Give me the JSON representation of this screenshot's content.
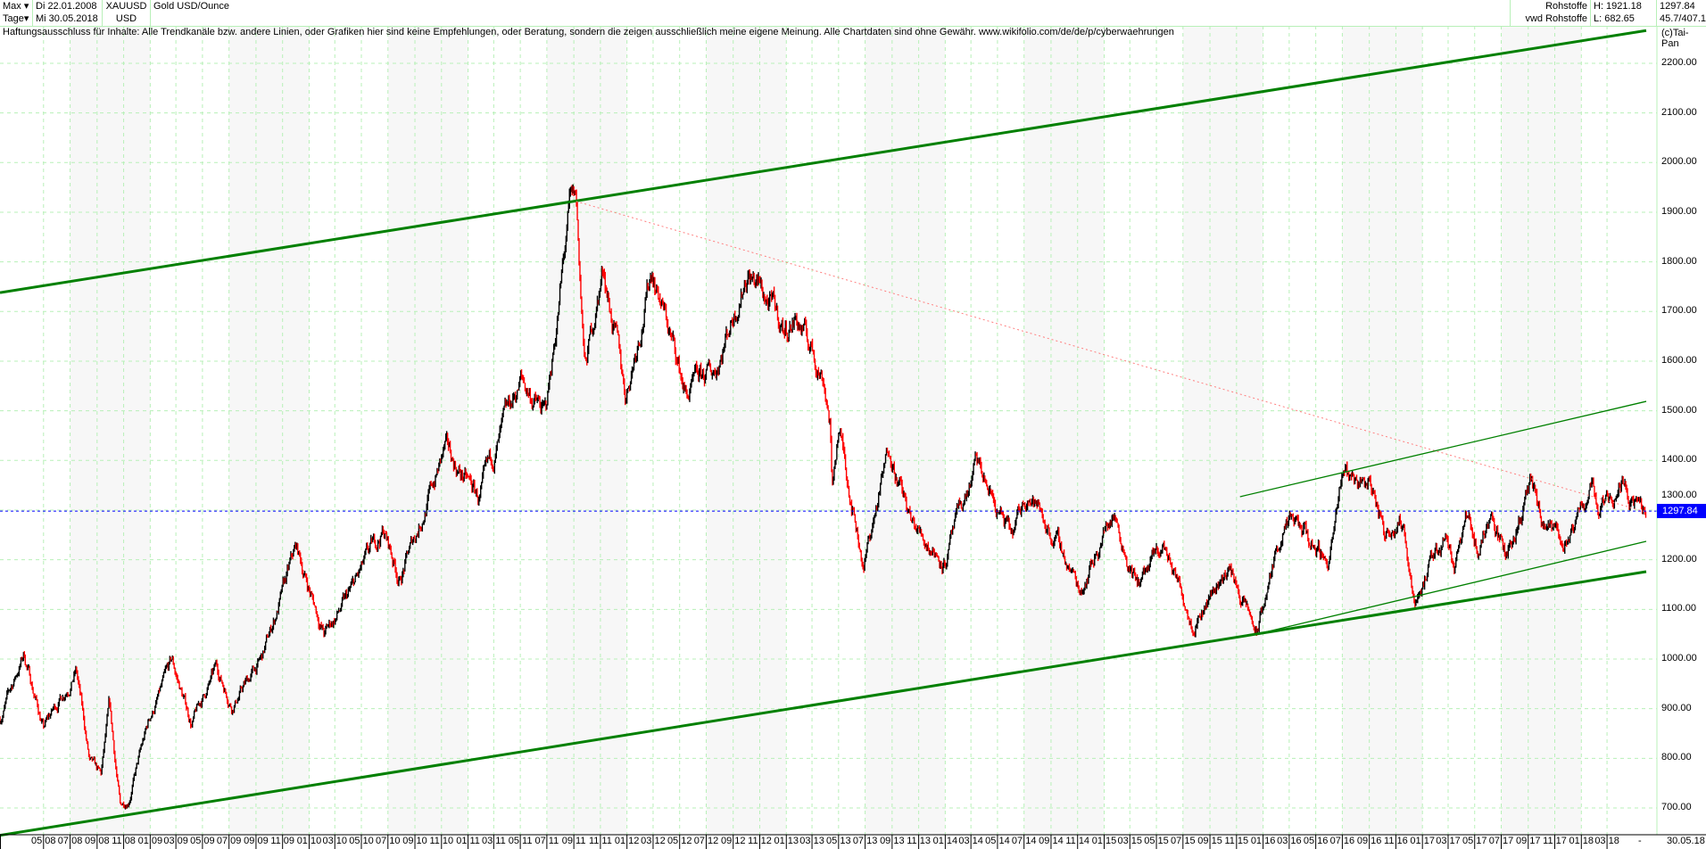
{
  "header": {
    "period": "Max",
    "interval": "Tage",
    "start_date": "Di 22.01.2008",
    "end_date": "Mi 30.05.2018",
    "symbol": "XAUUSD",
    "currency": "USD",
    "name": "Gold USD/Ounce",
    "market": "Rohstoffe",
    "source": "vwd Rohstoffe",
    "high": "H: 1921.18",
    "low": "L: 682.65",
    "last": "1297.84",
    "extra": "45.7/407.1"
  },
  "disclaimer": "Haftungsausschluss für Inhalte: Alle Trendkanäle bzw. andere Linien, oder Grafiken hier sind keine Empfehlungen, oder Beratung, sondern die zeigen ausschließlich meine eigene Meinung. Alle Chartdaten sind ohne Gewähr.  www.wikifolio.com/de/de/p/cyberwaehrungen",
  "copyright": "(c)Tai-Pan",
  "colors": {
    "grid": "#b8f0b8",
    "up": "#000000",
    "down": "#ff0000",
    "channel": "#008000",
    "resistance": "#ff8080",
    "last_line": "#0000ff",
    "band": "#f7f7f7"
  },
  "chart_data": {
    "type": "candlestick",
    "title": "Gold USD/Ounce",
    "x_range": [
      "2008-01-22",
      "2018-05-30"
    ],
    "ylim": [
      640,
      2290
    ],
    "grid": true,
    "y_ticks": [
      "700.00",
      "800.00",
      "900.00",
      "1000.00",
      "1100.00",
      "1200.00",
      "1300.00",
      "1400.00",
      "1500.00",
      "1600.00",
      "1700.00",
      "1800.00",
      "1900.00",
      "2000.00",
      "2100.00",
      "2200.00"
    ],
    "y_tick_values": [
      700,
      800,
      900,
      1000,
      1100,
      1200,
      1300,
      1400,
      1500,
      1600,
      1700,
      1800,
      1900,
      2000,
      2100,
      2200
    ],
    "x_ticks": [
      "05 08",
      "07 08",
      "09 08",
      "11 08",
      "01 09",
      "03 09",
      "05 09",
      "07 09",
      "09 09",
      "11 09",
      "01 10",
      "03 10",
      "05 10",
      "07 10",
      "09 10",
      "11 10",
      "01 11",
      "03 11",
      "05 11",
      "07 11",
      "09 11",
      "11 11",
      "01 12",
      "03 12",
      "05 12",
      "07 12",
      "09 12",
      "11 12",
      "01 13",
      "03 13",
      "05 13",
      "07 13",
      "09 13",
      "11 13",
      "01 14",
      "03 14",
      "05 14",
      "07 14",
      "09 14",
      "11 14",
      "01 15",
      "03 15",
      "05 15",
      "07 15",
      "09 15",
      "11 15",
      "01 16",
      "03 16",
      "05 16",
      "07 16",
      "09 16",
      "11 16",
      "01 17",
      "03 17",
      "05 17",
      "07 17",
      "09 17",
      "11 17",
      "01 18",
      "03 18"
    ],
    "x_end_dash": "-",
    "x_end_label": "30.05.18",
    "last_price": 1297.84,
    "last_price_label": "1297.84",
    "close_waypoints": [
      [
        "2008-01-22",
        880
      ],
      [
        "2008-03-17",
        1010
      ],
      [
        "2008-05-01",
        860
      ],
      [
        "2008-07-15",
        980
      ],
      [
        "2008-08-15",
        790
      ],
      [
        "2008-09-10",
        760
      ],
      [
        "2008-09-29",
        900
      ],
      [
        "2008-10-24",
        700
      ],
      [
        "2008-11-12",
        720
      ],
      [
        "2008-12-31",
        880
      ],
      [
        "2009-02-20",
        990
      ],
      [
        "2009-04-06",
        870
      ],
      [
        "2009-06-02",
        980
      ],
      [
        "2009-07-08",
        910
      ],
      [
        "2009-09-15",
        1000
      ],
      [
        "2009-12-02",
        1220
      ],
      [
        "2010-02-05",
        1050
      ],
      [
        "2010-03-30",
        1120
      ],
      [
        "2010-06-21",
        1260
      ],
      [
        "2010-07-28",
        1160
      ],
      [
        "2010-11-09",
        1420
      ],
      [
        "2011-01-27",
        1320
      ],
      [
        "2011-05-02",
        1560
      ],
      [
        "2011-06-28",
        1490
      ],
      [
        "2011-08-22",
        1900
      ],
      [
        "2011-09-06",
        1921
      ],
      [
        "2011-09-26",
        1580
      ],
      [
        "2011-11-08",
        1790
      ],
      [
        "2011-12-29",
        1530
      ],
      [
        "2012-02-28",
        1790
      ],
      [
        "2012-05-16",
        1530
      ],
      [
        "2012-07-20",
        1580
      ],
      [
        "2012-10-04",
        1790
      ],
      [
        "2012-12-28",
        1660
      ],
      [
        "2013-01-23",
        1690
      ],
      [
        "2013-03-28",
        1570
      ],
      [
        "2013-04-12",
        1480
      ],
      [
        "2013-04-16",
        1330
      ],
      [
        "2013-05-01",
        1470
      ],
      [
        "2013-06-28",
        1190
      ],
      [
        "2013-08-27",
        1430
      ],
      [
        "2013-10-15",
        1270
      ],
      [
        "2013-12-31",
        1200
      ],
      [
        "2014-03-14",
        1390
      ],
      [
        "2014-06-03",
        1240
      ],
      [
        "2014-07-10",
        1340
      ],
      [
        "2014-09-30",
        1210
      ],
      [
        "2014-11-06",
        1140
      ],
      [
        "2015-01-22",
        1300
      ],
      [
        "2015-03-17",
        1150
      ],
      [
        "2015-05-18",
        1225
      ],
      [
        "2015-07-24",
        1080
      ],
      [
        "2015-10-14",
        1185
      ],
      [
        "2015-12-17",
        1050
      ],
      [
        "2016-02-11",
        1250
      ],
      [
        "2016-03-10",
        1270
      ],
      [
        "2016-05-30",
        1200
      ],
      [
        "2016-07-06",
        1375
      ],
      [
        "2016-09-06",
        1350
      ],
      [
        "2016-10-07",
        1250
      ],
      [
        "2016-11-09",
        1300
      ],
      [
        "2016-12-15",
        1125
      ],
      [
        "2017-02-27",
        1260
      ],
      [
        "2017-03-15",
        1200
      ],
      [
        "2017-04-18",
        1290
      ],
      [
        "2017-05-09",
        1215
      ],
      [
        "2017-06-06",
        1295
      ],
      [
        "2017-07-10",
        1210
      ],
      [
        "2017-09-08",
        1350
      ],
      [
        "2017-10-06",
        1260
      ],
      [
        "2017-12-12",
        1240
      ],
      [
        "2018-01-25",
        1360
      ],
      [
        "2018-02-08",
        1310
      ],
      [
        "2018-04-11",
        1365
      ],
      [
        "2018-05-21",
        1285
      ],
      [
        "2018-05-30",
        1297.84
      ]
    ],
    "trend_lines": [
      {
        "kind": "upper-channel",
        "from": [
          "2008-01-22",
          1738
        ],
        "to": [
          "2018-05-30",
          2266
        ],
        "color": "#008000",
        "weight": "thick"
      },
      {
        "kind": "lower-channel",
        "from": [
          "2008-01-22",
          645
        ],
        "to": [
          "2018-05-30",
          1176
        ],
        "color": "#008000",
        "weight": "thick"
      },
      {
        "kind": "resistance",
        "from": [
          "2011-09-06",
          1922
        ],
        "to": [
          "2018-05-30",
          1296
        ],
        "color": "#ff8080",
        "style": "dotted"
      },
      {
        "kind": "upper-small-channel",
        "from": [
          "2015-11-09",
          1327
        ],
        "to": [
          "2018-05-30",
          1519
        ],
        "color": "#008000",
        "weight": "thin"
      },
      {
        "kind": "lower-small-channel",
        "from": [
          "2015-12-17",
          1050
        ],
        "to": [
          "2018-05-30",
          1237
        ],
        "color": "#008000",
        "weight": "thin"
      }
    ]
  }
}
